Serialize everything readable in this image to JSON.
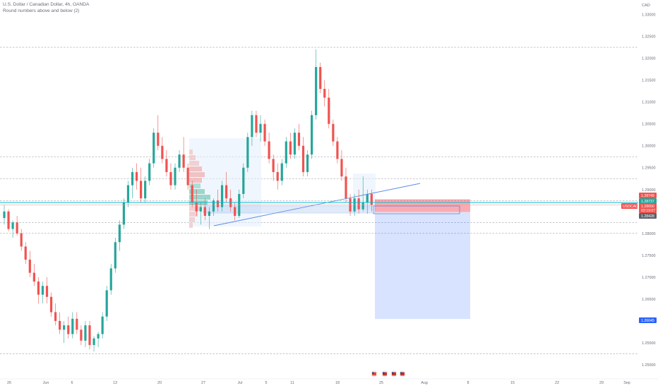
{
  "header": {
    "symbol_title": "U.S. Dollar / Canadian Dollar, 4h, OANDA",
    "indicator_title": "Round numbers above and below (2)"
  },
  "price_axis": {
    "currency": "CAD",
    "ticks": [
      "1.33000",
      "1.32500",
      "1.32000",
      "1.31500",
      "1.31000",
      "1.30500",
      "1.30000",
      "1.29500",
      "1.29000",
      "1.28500",
      "1.28000",
      "1.27500",
      "1.27000",
      "1.26500",
      "1.26000",
      "1.25500",
      "1.25000"
    ]
  },
  "time_axis": {
    "ticks": [
      "26",
      "Jun",
      "6",
      "13",
      "20",
      "27",
      "Jul",
      "5",
      "11",
      "18",
      "25",
      "Aug",
      "8",
      "15",
      "22",
      "29",
      "Sep"
    ]
  },
  "price_tags": {
    "high": {
      "value": "1.28749",
      "color": "#ef5350"
    },
    "mid": {
      "value": "1.28737",
      "color": "#26a69a"
    },
    "current_symbol": "USDCAD",
    "current_value": "1.28650",
    "countdown": "03:19:07",
    "current_color": "#ef5350",
    "stop": {
      "value": "1.28428",
      "color": "#5d606b"
    },
    "target": {
      "value": "1.26045",
      "color": "#2962ff"
    }
  },
  "colors": {
    "up_candle": "#26a69a",
    "down_candle": "#ef5350",
    "grid_dashed": "#a0a3ab",
    "trendline": "#5b8de6",
    "cyan_line": "#00bcd4",
    "loss_zone": "#f23645",
    "profit_zone": "#2962ff"
  },
  "chart_data": {
    "type": "candlestick",
    "timeframe": "4h",
    "instrument": "USDCAD",
    "x": [
      "2022-05-26",
      "2022-07-29"
    ],
    "y_range": [
      1.249,
      1.3325
    ],
    "round_number_lines": [
      1.3225,
      1.2975,
      1.2925,
      1.2875,
      1.2825,
      1.28,
      1.2525
    ],
    "trendline": {
      "from": [
        "2022-06-30",
        1.2815
      ],
      "to": [
        "2022-07-26",
        1.2958
      ]
    },
    "position": {
      "type": "short",
      "entry": 1.2865,
      "stop_loss": 1.2875,
      "take_profit": 1.26045,
      "start": "2022-07-25",
      "end": "2022-08-08"
    },
    "candles": [
      {
        "t": 0,
        "o": 1.2835,
        "h": 1.2865,
        "l": 1.282,
        "c": 1.285
      },
      {
        "t": 1,
        "o": 1.285,
        "h": 1.2855,
        "l": 1.2805,
        "c": 1.281
      },
      {
        "t": 2,
        "o": 1.281,
        "h": 1.283,
        "l": 1.279,
        "c": 1.2825
      },
      {
        "t": 3,
        "o": 1.2825,
        "h": 1.284,
        "l": 1.2795,
        "c": 1.28
      },
      {
        "t": 4,
        "o": 1.28,
        "h": 1.281,
        "l": 1.276,
        "c": 1.277
      },
      {
        "t": 5,
        "o": 1.277,
        "h": 1.278,
        "l": 1.273,
        "c": 1.274
      },
      {
        "t": 6,
        "o": 1.274,
        "h": 1.276,
        "l": 1.27,
        "c": 1.271
      },
      {
        "t": 7,
        "o": 1.271,
        "h": 1.273,
        "l": 1.268,
        "c": 1.269
      },
      {
        "t": 8,
        "o": 1.269,
        "h": 1.27,
        "l": 1.264,
        "c": 1.266
      },
      {
        "t": 9,
        "o": 1.266,
        "h": 1.269,
        "l": 1.264,
        "c": 1.268
      },
      {
        "t": 10,
        "o": 1.268,
        "h": 1.27,
        "l": 1.264,
        "c": 1.2655
      },
      {
        "t": 11,
        "o": 1.2655,
        "h": 1.2665,
        "l": 1.261,
        "c": 1.262
      },
      {
        "t": 12,
        "o": 1.262,
        "h": 1.264,
        "l": 1.259,
        "c": 1.26
      },
      {
        "t": 13,
        "o": 1.26,
        "h": 1.262,
        "l": 1.257,
        "c": 1.258
      },
      {
        "t": 14,
        "o": 1.258,
        "h": 1.26,
        "l": 1.255,
        "c": 1.259
      },
      {
        "t": 15,
        "o": 1.259,
        "h": 1.261,
        "l": 1.256,
        "c": 1.257
      },
      {
        "t": 16,
        "o": 1.257,
        "h": 1.262,
        "l": 1.256,
        "c": 1.2605
      },
      {
        "t": 17,
        "o": 1.2605,
        "h": 1.262,
        "l": 1.257,
        "c": 1.258
      },
      {
        "t": 18,
        "o": 1.258,
        "h": 1.259,
        "l": 1.2545,
        "c": 1.2555
      },
      {
        "t": 19,
        "o": 1.2555,
        "h": 1.26,
        "l": 1.254,
        "c": 1.259
      },
      {
        "t": 20,
        "o": 1.259,
        "h": 1.26,
        "l": 1.2535,
        "c": 1.2545
      },
      {
        "t": 21,
        "o": 1.2545,
        "h": 1.2565,
        "l": 1.253,
        "c": 1.256
      },
      {
        "t": 22,
        "o": 1.256,
        "h": 1.2575,
        "l": 1.254,
        "c": 1.257
      },
      {
        "t": 23,
        "o": 1.257,
        "h": 1.262,
        "l": 1.256,
        "c": 1.261
      },
      {
        "t": 24,
        "o": 1.261,
        "h": 1.268,
        "l": 1.26,
        "c": 1.267
      },
      {
        "t": 25,
        "o": 1.267,
        "h": 1.273,
        "l": 1.266,
        "c": 1.272
      },
      {
        "t": 26,
        "o": 1.272,
        "h": 1.279,
        "l": 1.271,
        "c": 1.278
      },
      {
        "t": 27,
        "o": 1.278,
        "h": 1.283,
        "l": 1.276,
        "c": 1.282
      },
      {
        "t": 28,
        "o": 1.282,
        "h": 1.288,
        "l": 1.281,
        "c": 1.287
      },
      {
        "t": 29,
        "o": 1.287,
        "h": 1.292,
        "l": 1.286,
        "c": 1.291
      },
      {
        "t": 30,
        "o": 1.291,
        "h": 1.295,
        "l": 1.288,
        "c": 1.294
      },
      {
        "t": 31,
        "o": 1.294,
        "h": 1.296,
        "l": 1.29,
        "c": 1.292
      },
      {
        "t": 32,
        "o": 1.292,
        "h": 1.295,
        "l": 1.287,
        "c": 1.288
      },
      {
        "t": 33,
        "o": 1.288,
        "h": 1.293,
        "l": 1.287,
        "c": 1.292
      },
      {
        "t": 34,
        "o": 1.292,
        "h": 1.297,
        "l": 1.291,
        "c": 1.296
      },
      {
        "t": 35,
        "o": 1.296,
        "h": 1.304,
        "l": 1.295,
        "c": 1.303
      },
      {
        "t": 36,
        "o": 1.303,
        "h": 1.307,
        "l": 1.299,
        "c": 1.3
      },
      {
        "t": 37,
        "o": 1.3,
        "h": 1.302,
        "l": 1.296,
        "c": 1.297
      },
      {
        "t": 38,
        "o": 1.297,
        "h": 1.299,
        "l": 1.293,
        "c": 1.294
      },
      {
        "t": 39,
        "o": 1.294,
        "h": 1.296,
        "l": 1.29,
        "c": 1.291
      },
      {
        "t": 40,
        "o": 1.291,
        "h": 1.296,
        "l": 1.29,
        "c": 1.295
      },
      {
        "t": 41,
        "o": 1.295,
        "h": 1.299,
        "l": 1.294,
        "c": 1.298
      },
      {
        "t": 42,
        "o": 1.298,
        "h": 1.302,
        "l": 1.294,
        "c": 1.295
      },
      {
        "t": 43,
        "o": 1.295,
        "h": 1.296,
        "l": 1.29,
        "c": 1.291
      },
      {
        "t": 44,
        "o": 1.291,
        "h": 1.292,
        "l": 1.286,
        "c": 1.287
      },
      {
        "t": 45,
        "o": 1.287,
        "h": 1.29,
        "l": 1.284,
        "c": 1.285
      },
      {
        "t": 46,
        "o": 1.285,
        "h": 1.287,
        "l": 1.282,
        "c": 1.286
      },
      {
        "t": 47,
        "o": 1.286,
        "h": 1.288,
        "l": 1.283,
        "c": 1.284
      },
      {
        "t": 48,
        "o": 1.284,
        "h": 1.286,
        "l": 1.281,
        "c": 1.285
      },
      {
        "t": 49,
        "o": 1.285,
        "h": 1.288,
        "l": 1.284,
        "c": 1.2875
      },
      {
        "t": 50,
        "o": 1.2875,
        "h": 1.29,
        "l": 1.285,
        "c": 1.286
      },
      {
        "t": 51,
        "o": 1.286,
        "h": 1.292,
        "l": 1.285,
        "c": 1.291
      },
      {
        "t": 52,
        "o": 1.291,
        "h": 1.294,
        "l": 1.287,
        "c": 1.288
      },
      {
        "t": 53,
        "o": 1.288,
        "h": 1.29,
        "l": 1.285,
        "c": 1.286
      },
      {
        "t": 54,
        "o": 1.286,
        "h": 1.287,
        "l": 1.283,
        "c": 1.284
      },
      {
        "t": 55,
        "o": 1.284,
        "h": 1.29,
        "l": 1.2835,
        "c": 1.289
      },
      {
        "t": 56,
        "o": 1.289,
        "h": 1.296,
        "l": 1.288,
        "c": 1.295
      },
      {
        "t": 57,
        "o": 1.295,
        "h": 1.303,
        "l": 1.294,
        "c": 1.302
      },
      {
        "t": 58,
        "o": 1.302,
        "h": 1.308,
        "l": 1.3,
        "c": 1.307
      },
      {
        "t": 59,
        "o": 1.307,
        "h": 1.308,
        "l": 1.302,
        "c": 1.303
      },
      {
        "t": 60,
        "o": 1.303,
        "h": 1.307,
        "l": 1.301,
        "c": 1.305
      },
      {
        "t": 61,
        "o": 1.305,
        "h": 1.306,
        "l": 1.3,
        "c": 1.301
      },
      {
        "t": 62,
        "o": 1.301,
        "h": 1.303,
        "l": 1.296,
        "c": 1.297
      },
      {
        "t": 63,
        "o": 1.297,
        "h": 1.298,
        "l": 1.292,
        "c": 1.294
      },
      {
        "t": 64,
        "o": 1.294,
        "h": 1.296,
        "l": 1.29,
        "c": 1.292
      },
      {
        "t": 65,
        "o": 1.292,
        "h": 1.297,
        "l": 1.291,
        "c": 1.296
      },
      {
        "t": 66,
        "o": 1.296,
        "h": 1.302,
        "l": 1.295,
        "c": 1.301
      },
      {
        "t": 67,
        "o": 1.301,
        "h": 1.303,
        "l": 1.297,
        "c": 1.298
      },
      {
        "t": 68,
        "o": 1.298,
        "h": 1.304,
        "l": 1.297,
        "c": 1.303
      },
      {
        "t": 69,
        "o": 1.303,
        "h": 1.305,
        "l": 1.299,
        "c": 1.3
      },
      {
        "t": 70,
        "o": 1.3,
        "h": 1.302,
        "l": 1.293,
        "c": 1.294
      },
      {
        "t": 71,
        "o": 1.294,
        "h": 1.299,
        "l": 1.293,
        "c": 1.298
      },
      {
        "t": 72,
        "o": 1.298,
        "h": 1.308,
        "l": 1.297,
        "c": 1.307
      },
      {
        "t": 73,
        "o": 1.307,
        "h": 1.322,
        "l": 1.306,
        "c": 1.318
      },
      {
        "t": 74,
        "o": 1.318,
        "h": 1.319,
        "l": 1.312,
        "c": 1.313
      },
      {
        "t": 75,
        "o": 1.313,
        "h": 1.315,
        "l": 1.309,
        "c": 1.311
      },
      {
        "t": 76,
        "o": 1.311,
        "h": 1.313,
        "l": 1.304,
        "c": 1.305
      },
      {
        "t": 77,
        "o": 1.305,
        "h": 1.306,
        "l": 1.3,
        "c": 1.301
      },
      {
        "t": 78,
        "o": 1.301,
        "h": 1.302,
        "l": 1.296,
        "c": 1.297
      },
      {
        "t": 79,
        "o": 1.297,
        "h": 1.299,
        "l": 1.292,
        "c": 1.293
      },
      {
        "t": 80,
        "o": 1.293,
        "h": 1.295,
        "l": 1.287,
        "c": 1.288
      },
      {
        "t": 81,
        "o": 1.288,
        "h": 1.289,
        "l": 1.284,
        "c": 1.285
      },
      {
        "t": 82,
        "o": 1.285,
        "h": 1.289,
        "l": 1.284,
        "c": 1.288
      },
      {
        "t": 83,
        "o": 1.288,
        "h": 1.29,
        "l": 1.2845,
        "c": 1.2855
      },
      {
        "t": 84,
        "o": 1.2855,
        "h": 1.293,
        "l": 1.285,
        "c": 1.287
      },
      {
        "t": 85,
        "o": 1.287,
        "h": 1.29,
        "l": 1.2845,
        "c": 1.289
      },
      {
        "t": 86,
        "o": 1.289,
        "h": 1.29,
        "l": 1.285,
        "c": 1.2865
      }
    ]
  }
}
